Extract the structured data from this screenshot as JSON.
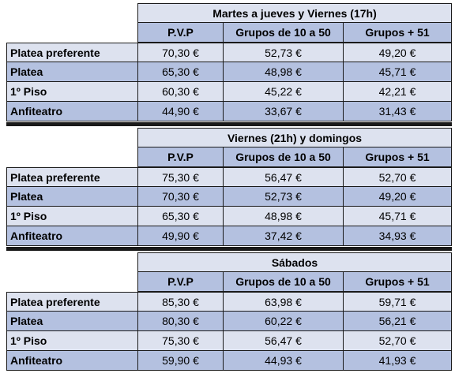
{
  "sections": [
    {
      "title": "Martes a jueves y Viernes (17h)",
      "headers": [
        "P.V.P",
        "Grupos de 10 a 50",
        "Grupos + 51"
      ],
      "rows": [
        {
          "label": "Platea preferente",
          "values": [
            "70,30 €",
            "52,73 €",
            "49,20 €"
          ]
        },
        {
          "label": "Platea",
          "values": [
            "65,30 €",
            "48,98 €",
            "45,71 €"
          ]
        },
        {
          "label": "1º Piso",
          "values": [
            "60,30 €",
            "45,22 €",
            "42,21 €"
          ]
        },
        {
          "label": "Anfiteatro",
          "values": [
            "44,90 €",
            "33,67 €",
            "31,43 €"
          ]
        }
      ]
    },
    {
      "title": "Viernes (21h) y domingos",
      "headers": [
        "P.V.P",
        "Grupos de 10 a 50",
        "Grupos + 51"
      ],
      "rows": [
        {
          "label": "Platea preferente",
          "values": [
            "75,30 €",
            "56,47 €",
            "52,70 €"
          ]
        },
        {
          "label": "Platea",
          "values": [
            "70,30 €",
            "52,73 €",
            "49,20 €"
          ]
        },
        {
          "label": "1º Piso",
          "values": [
            "65,30 €",
            "48,98 €",
            "45,71 €"
          ]
        },
        {
          "label": "Anfiteatro",
          "values": [
            "49,90 €",
            "37,42 €",
            "34,93 €"
          ]
        }
      ]
    },
    {
      "title": "Sábados",
      "headers": [
        "P.V.P",
        "Grupos de 10 a 50",
        "Grupos + 51"
      ],
      "rows": [
        {
          "label": "Platea preferente",
          "values": [
            "85,30 €",
            "63,98 €",
            "59,71 €"
          ]
        },
        {
          "label": "Platea",
          "values": [
            "80,30 €",
            "60,22 €",
            "56,21 €"
          ]
        },
        {
          "label": "1º Piso",
          "values": [
            "75,30 €",
            "56,47 €",
            "52,70 €"
          ]
        },
        {
          "label": "Anfiteatro",
          "values": [
            "59,90 €",
            "44,93 €",
            "41,93 €"
          ]
        }
      ]
    }
  ],
  "colors": {
    "row_light": "#dde2ef",
    "row_dark": "#b4c1e0",
    "border": "#1a1a1a"
  }
}
